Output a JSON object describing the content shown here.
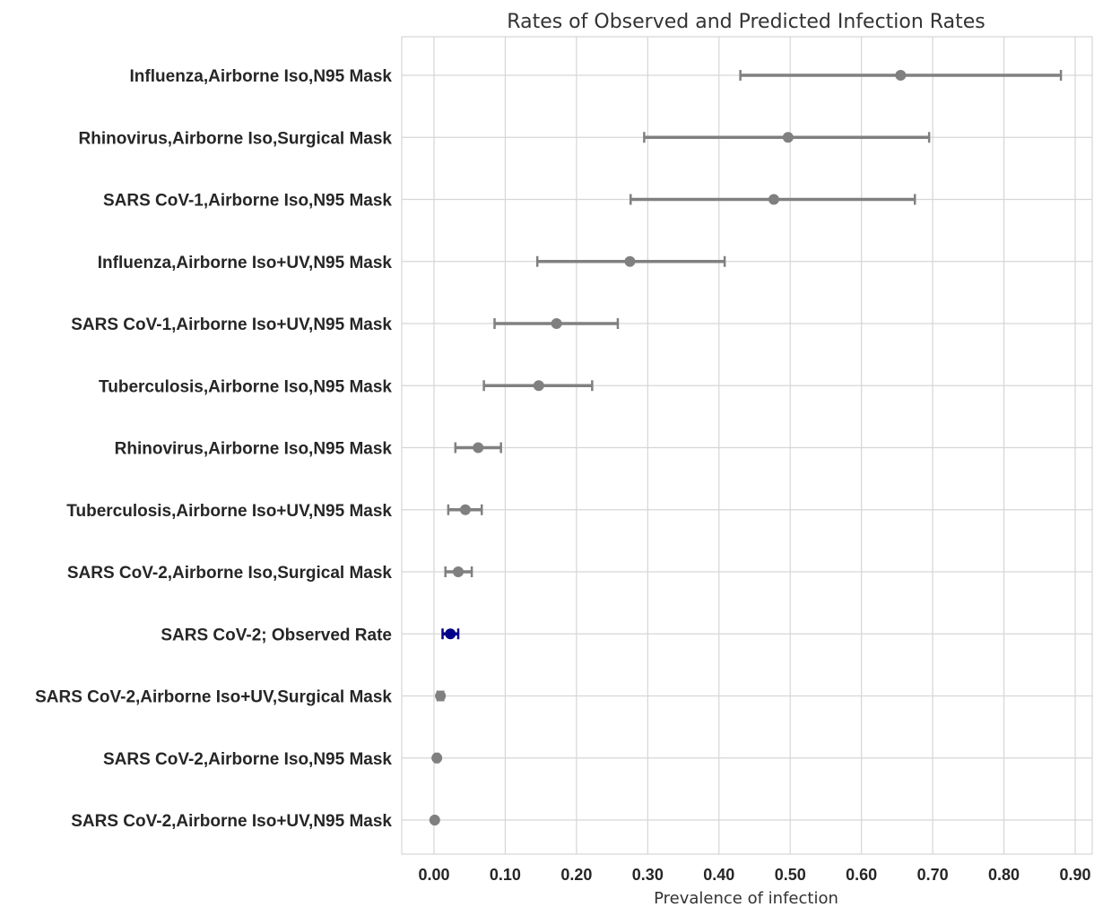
{
  "chart_data": {
    "type": "scatter",
    "subtype": "dot-with-error-bars",
    "title": "Rates of Observed and Predicted Infection Rates",
    "xlabel": "Prevalence of infection",
    "ylabel": "",
    "xlim": [
      -0.045,
      0.92
    ],
    "xticks": [
      0.0,
      0.1,
      0.2,
      0.3,
      0.4,
      0.5,
      0.6,
      0.7,
      0.8,
      0.9
    ],
    "xtick_labels": [
      "0.00",
      "0.10",
      "0.20",
      "0.30",
      "0.40",
      "0.50",
      "0.60",
      "0.70",
      "0.80",
      "0.90"
    ],
    "grid": true,
    "default_color": "#808080",
    "highlight_color": "#00008b",
    "points": [
      {
        "label": "Influenza,Airborne Iso,N95 Mask",
        "value": 0.655,
        "low": 0.43,
        "high": 0.88,
        "highlight": false
      },
      {
        "label": "Rhinovirus,Airborne Iso,Surgical Mask",
        "value": 0.497,
        "low": 0.295,
        "high": 0.695,
        "highlight": false
      },
      {
        "label": "SARS CoV-1,Airborne Iso,N95 Mask",
        "value": 0.477,
        "low": 0.276,
        "high": 0.675,
        "highlight": false
      },
      {
        "label": "Influenza,Airborne Iso+UV,N95 Mask",
        "value": 0.275,
        "low": 0.145,
        "high": 0.408,
        "highlight": false
      },
      {
        "label": "SARS CoV-1,Airborne Iso+UV,N95 Mask",
        "value": 0.172,
        "low": 0.085,
        "high": 0.258,
        "highlight": false
      },
      {
        "label": "Tuberculosis,Airborne Iso,N95 Mask",
        "value": 0.147,
        "low": 0.07,
        "high": 0.222,
        "highlight": false
      },
      {
        "label": "Rhinovirus,Airborne Iso,N95 Mask",
        "value": 0.062,
        "low": 0.03,
        "high": 0.094,
        "highlight": false
      },
      {
        "label": "Tuberculosis,Airborne Iso+UV,N95 Mask",
        "value": 0.044,
        "low": 0.02,
        "high": 0.067,
        "highlight": false
      },
      {
        "label": "SARS CoV-2,Airborne Iso,Surgical Mask",
        "value": 0.034,
        "low": 0.016,
        "high": 0.053,
        "highlight": false
      },
      {
        "label": "SARS CoV-2; Observed Rate",
        "value": 0.023,
        "low": 0.012,
        "high": 0.034,
        "highlight": true
      },
      {
        "label": "SARS CoV-2,Airborne Iso+UV,Surgical Mask",
        "value": 0.009,
        "low": 0.005,
        "high": 0.013,
        "highlight": false
      },
      {
        "label": "SARS CoV-2,Airborne Iso,N95 Mask",
        "value": 0.004,
        "low": 0.002,
        "high": 0.006,
        "highlight": false
      },
      {
        "label": "SARS CoV-2,Airborne Iso+UV,N95 Mask",
        "value": 0.001,
        "low": 0.0,
        "high": 0.002,
        "highlight": false
      }
    ]
  }
}
